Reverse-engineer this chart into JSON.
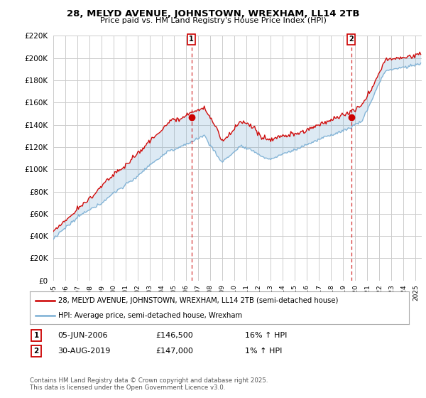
{
  "title": "28, MELYD AVENUE, JOHNSTOWN, WREXHAM, LL14 2TB",
  "subtitle": "Price paid vs. HM Land Registry's House Price Index (HPI)",
  "legend_label_red": "28, MELYD AVENUE, JOHNSTOWN, WREXHAM, LL14 2TB (semi-detached house)",
  "legend_label_blue": "HPI: Average price, semi-detached house, Wrexham",
  "annotation1_label": "1",
  "annotation1_date": "05-JUN-2006",
  "annotation1_price": "£146,500",
  "annotation1_hpi": "16% ↑ HPI",
  "annotation2_label": "2",
  "annotation2_date": "30-AUG-2019",
  "annotation2_price": "£147,000",
  "annotation2_hpi": "1% ↑ HPI",
  "footer": "Contains HM Land Registry data © Crown copyright and database right 2025.\nThis data is licensed under the Open Government Licence v3.0.",
  "ylim": [
    0,
    220000
  ],
  "yticks": [
    0,
    20000,
    40000,
    60000,
    80000,
    100000,
    120000,
    140000,
    160000,
    180000,
    200000,
    220000
  ],
  "red_color": "#cc0000",
  "blue_color": "#7bafd4",
  "fill_color": "#ddeeff",
  "vline_color": "#cc0000",
  "background_color": "#ffffff",
  "grid_color": "#cccccc",
  "t_sale1": 2006.4384,
  "t_sale2": 2019.663,
  "price_sale1": 146500,
  "price_sale2": 147000
}
